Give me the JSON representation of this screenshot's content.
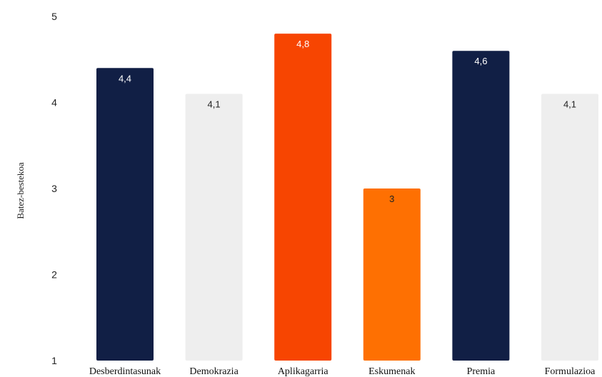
{
  "chart_data": {
    "type": "bar",
    "ylabel": "Batez-bestekoa",
    "xlabel": "",
    "ylim": [
      1,
      5
    ],
    "y_ticks": [
      1,
      2,
      3,
      4,
      5
    ],
    "grid": false,
    "categories": [
      "Desberdintasunak",
      "Demokrazia",
      "Aplikagarria",
      "Eskumenak",
      "Premia",
      "Formulazioa"
    ],
    "values": [
      4.4,
      4.1,
      4.8,
      3,
      4.6,
      4.1
    ],
    "value_labels": [
      "4,4",
      "4,1",
      "4,8",
      "3",
      "4,6",
      "4,1"
    ],
    "bar_colors": [
      "#111f45",
      "#eeeeee",
      "#f74501",
      "#fe7002",
      "#111f45",
      "#eeeeee"
    ],
    "label_colors": [
      "#ffffff",
      "#222222",
      "#ffffff",
      "#222222",
      "#ffffff",
      "#222222"
    ]
  }
}
